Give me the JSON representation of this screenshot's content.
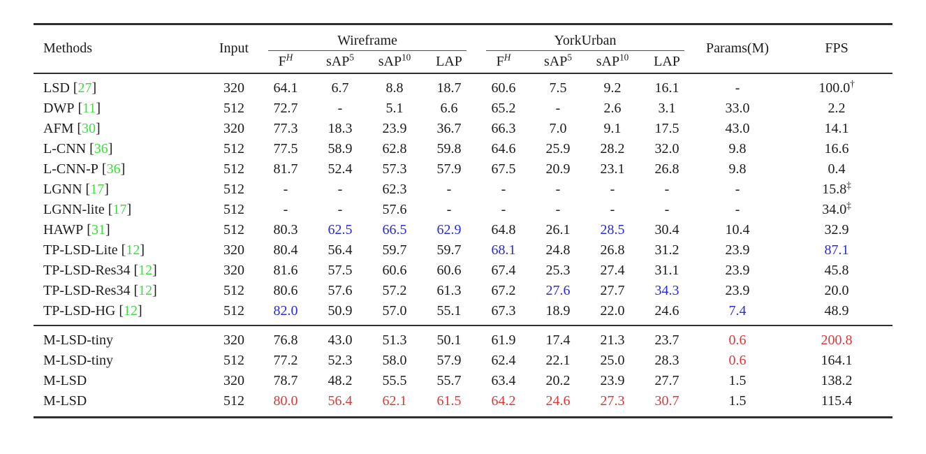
{
  "colors": {
    "citation_green": "#3ddc3d",
    "second_best_blue": "#2a2ad8",
    "best_red": "#dc3838",
    "rule_dark": "#2e2e2e"
  },
  "table": {
    "headers": {
      "methods": "Methods",
      "input": "Input",
      "group_wireframe": "Wireframe",
      "group_yorkurban": "YorkUrban",
      "params": "Params(M)",
      "fps": "FPS"
    },
    "metric_headers": [
      {
        "base": "F",
        "sup": "H",
        "italic_sup": true
      },
      {
        "base": "sAP",
        "sup": "5",
        "italic_sup": false
      },
      {
        "base": "sAP",
        "sup": "10",
        "italic_sup": false
      },
      {
        "base": "LAP",
        "sup": "",
        "italic_sup": false
      }
    ],
    "rows": [
      {
        "method": "LSD",
        "cite": {
          "open": "[",
          "num": "27",
          "close": "]"
        },
        "input": "320",
        "section": "baseline",
        "cells": [
          {
            "v": "64.1"
          },
          {
            "v": "6.7"
          },
          {
            "v": "8.8"
          },
          {
            "v": "18.7"
          },
          {
            "v": "60.6"
          },
          {
            "v": "7.5"
          },
          {
            "v": "9.2"
          },
          {
            "v": "16.1"
          },
          {
            "v": "-"
          },
          {
            "v": "100.0",
            "sup": "†"
          }
        ]
      },
      {
        "method": "DWP",
        "cite": {
          "open": "[",
          "num": "11",
          "close": "]"
        },
        "input": "512",
        "section": "baseline",
        "cells": [
          {
            "v": "72.7"
          },
          {
            "v": "-"
          },
          {
            "v": "5.1"
          },
          {
            "v": "6.6"
          },
          {
            "v": "65.2"
          },
          {
            "v": "-"
          },
          {
            "v": "2.6"
          },
          {
            "v": "3.1"
          },
          {
            "v": "33.0"
          },
          {
            "v": "2.2"
          }
        ]
      },
      {
        "method": "AFM",
        "cite": {
          "open": "[",
          "num": "30",
          "close": "]"
        },
        "input": "320",
        "section": "baseline",
        "cells": [
          {
            "v": "77.3"
          },
          {
            "v": "18.3"
          },
          {
            "v": "23.9"
          },
          {
            "v": "36.7"
          },
          {
            "v": "66.3"
          },
          {
            "v": "7.0"
          },
          {
            "v": "9.1"
          },
          {
            "v": "17.5"
          },
          {
            "v": "43.0"
          },
          {
            "v": "14.1"
          }
        ]
      },
      {
        "method": "L-CNN",
        "cite": {
          "open": "[",
          "num": "36",
          "close": "]"
        },
        "input": "512",
        "section": "baseline",
        "cells": [
          {
            "v": "77.5"
          },
          {
            "v": "58.9"
          },
          {
            "v": "62.8"
          },
          {
            "v": "59.8"
          },
          {
            "v": "64.6"
          },
          {
            "v": "25.9"
          },
          {
            "v": "28.2"
          },
          {
            "v": "32.0"
          },
          {
            "v": "9.8"
          },
          {
            "v": "16.6"
          }
        ]
      },
      {
        "method": "L-CNN-P",
        "cite": {
          "open": "[",
          "num": "36",
          "close": "]"
        },
        "input": "512",
        "section": "baseline",
        "cells": [
          {
            "v": "81.7"
          },
          {
            "v": "52.4"
          },
          {
            "v": "57.3"
          },
          {
            "v": "57.9"
          },
          {
            "v": "67.5"
          },
          {
            "v": "20.9"
          },
          {
            "v": "23.1"
          },
          {
            "v": "26.8"
          },
          {
            "v": "9.8"
          },
          {
            "v": "0.4"
          }
        ]
      },
      {
        "method": "LGNN",
        "cite": {
          "open": "[",
          "num": "17",
          "close": "]"
        },
        "input": "512",
        "section": "baseline",
        "cells": [
          {
            "v": "-"
          },
          {
            "v": "-"
          },
          {
            "v": "62.3"
          },
          {
            "v": "-"
          },
          {
            "v": "-"
          },
          {
            "v": "-"
          },
          {
            "v": "-"
          },
          {
            "v": "-"
          },
          {
            "v": "-"
          },
          {
            "v": "15.8",
            "sup": "‡"
          }
        ]
      },
      {
        "method": "LGNN-lite",
        "cite": {
          "open": "[",
          "num": "17",
          "close": "]"
        },
        "input": "512",
        "section": "baseline",
        "cells": [
          {
            "v": "-"
          },
          {
            "v": "-"
          },
          {
            "v": "57.6"
          },
          {
            "v": "-"
          },
          {
            "v": "-"
          },
          {
            "v": "-"
          },
          {
            "v": "-"
          },
          {
            "v": "-"
          },
          {
            "v": "-"
          },
          {
            "v": "34.0",
            "sup": "‡"
          }
        ]
      },
      {
        "method": "HAWP",
        "cite": {
          "open": "[",
          "num": "31",
          "close": "]"
        },
        "input": "512",
        "section": "baseline",
        "cells": [
          {
            "v": "80.3"
          },
          {
            "v": "62.5",
            "c": "b"
          },
          {
            "v": "66.5",
            "c": "b"
          },
          {
            "v": "62.9",
            "c": "b"
          },
          {
            "v": "64.8"
          },
          {
            "v": "26.1"
          },
          {
            "v": "28.5",
            "c": "b"
          },
          {
            "v": "30.4"
          },
          {
            "v": "10.4"
          },
          {
            "v": "32.9"
          }
        ]
      },
      {
        "method": "TP-LSD-Lite",
        "cite": {
          "open": "[",
          "num": "12",
          "close": "]"
        },
        "input": "320",
        "section": "baseline",
        "cells": [
          {
            "v": "80.4"
          },
          {
            "v": "56.4"
          },
          {
            "v": "59.7"
          },
          {
            "v": "59.7"
          },
          {
            "v": "68.1",
            "c": "b"
          },
          {
            "v": "24.8"
          },
          {
            "v": "26.8"
          },
          {
            "v": "31.2"
          },
          {
            "v": "23.9"
          },
          {
            "v": "87.1",
            "c": "b"
          }
        ]
      },
      {
        "method": "TP-LSD-Res34",
        "cite": {
          "open": "[",
          "num": "12",
          "close": "]"
        },
        "input": "320",
        "section": "baseline",
        "cells": [
          {
            "v": "81.6"
          },
          {
            "v": "57.5"
          },
          {
            "v": "60.6"
          },
          {
            "v": "60.6"
          },
          {
            "v": "67.4"
          },
          {
            "v": "25.3"
          },
          {
            "v": "27.4"
          },
          {
            "v": "31.1"
          },
          {
            "v": "23.9"
          },
          {
            "v": "45.8"
          }
        ]
      },
      {
        "method": "TP-LSD-Res34",
        "cite": {
          "open": "[",
          "num": "12",
          "close": "]"
        },
        "input": "512",
        "section": "baseline",
        "cells": [
          {
            "v": "80.6"
          },
          {
            "v": "57.6"
          },
          {
            "v": "57.2"
          },
          {
            "v": "61.3"
          },
          {
            "v": "67.2"
          },
          {
            "v": "27.6",
            "c": "b"
          },
          {
            "v": "27.7"
          },
          {
            "v": "34.3",
            "c": "b"
          },
          {
            "v": "23.9"
          },
          {
            "v": "20.0"
          }
        ]
      },
      {
        "method": "TP-LSD-HG",
        "cite": {
          "open": "[",
          "num": "12",
          "close": "]"
        },
        "input": "512",
        "section": "baseline",
        "cells": [
          {
            "v": "82.0",
            "c": "b"
          },
          {
            "v": "50.9"
          },
          {
            "v": "57.0"
          },
          {
            "v": "55.1"
          },
          {
            "v": "67.3"
          },
          {
            "v": "18.9"
          },
          {
            "v": "22.0"
          },
          {
            "v": "24.6"
          },
          {
            "v": "7.4",
            "c": "b"
          },
          {
            "v": "48.9"
          }
        ]
      },
      {
        "method": "M-LSD-tiny",
        "cite": null,
        "input": "320",
        "section": "ours",
        "cells": [
          {
            "v": "76.8"
          },
          {
            "v": "43.0"
          },
          {
            "v": "51.3"
          },
          {
            "v": "50.1"
          },
          {
            "v": "61.9"
          },
          {
            "v": "17.4"
          },
          {
            "v": "21.3"
          },
          {
            "v": "23.7"
          },
          {
            "v": "0.6",
            "c": "r"
          },
          {
            "v": "200.8",
            "c": "r"
          }
        ]
      },
      {
        "method": "M-LSD-tiny",
        "cite": null,
        "input": "512",
        "section": "ours",
        "cells": [
          {
            "v": "77.2"
          },
          {
            "v": "52.3"
          },
          {
            "v": "58.0"
          },
          {
            "v": "57.9"
          },
          {
            "v": "62.4"
          },
          {
            "v": "22.1"
          },
          {
            "v": "25.0"
          },
          {
            "v": "28.3"
          },
          {
            "v": "0.6",
            "c": "r"
          },
          {
            "v": "164.1"
          }
        ]
      },
      {
        "method": "M-LSD",
        "cite": null,
        "input": "320",
        "section": "ours",
        "cells": [
          {
            "v": "78.7"
          },
          {
            "v": "48.2"
          },
          {
            "v": "55.5"
          },
          {
            "v": "55.7"
          },
          {
            "v": "63.4"
          },
          {
            "v": "20.2"
          },
          {
            "v": "23.9"
          },
          {
            "v": "27.7"
          },
          {
            "v": "1.5"
          },
          {
            "v": "138.2"
          }
        ]
      },
      {
        "method": "M-LSD",
        "cite": null,
        "input": "512",
        "section": "ours",
        "cells": [
          {
            "v": "80.0",
            "c": "r"
          },
          {
            "v": "56.4",
            "c": "r"
          },
          {
            "v": "62.1",
            "c": "r"
          },
          {
            "v": "61.5",
            "c": "r"
          },
          {
            "v": "64.2",
            "c": "r"
          },
          {
            "v": "24.6",
            "c": "r"
          },
          {
            "v": "27.3",
            "c": "r"
          },
          {
            "v": "30.7",
            "c": "r"
          },
          {
            "v": "1.5"
          },
          {
            "v": "115.4"
          }
        ]
      }
    ]
  }
}
